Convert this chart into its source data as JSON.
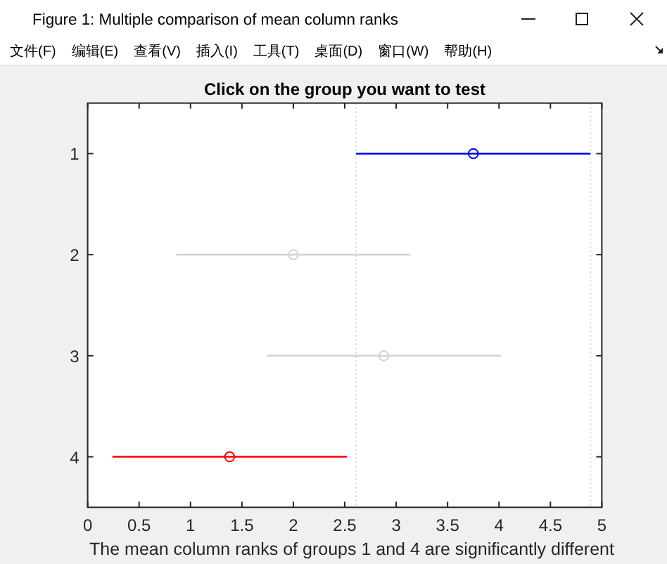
{
  "chart_data": {
    "type": "scatter",
    "title": "Click on the group you want to test",
    "xlabel": "The mean column ranks of groups 1 and 4 are significantly different",
    "x": [
      3.75,
      2.0,
      2.88,
      1.38
    ],
    "values": [
      1,
      2,
      3,
      4
    ],
    "xerrors": [
      1.14,
      1.14,
      1.14,
      1.14
    ],
    "colors": [
      "#0000ff",
      "#d4d4d4",
      "#d4d4d4",
      "#ff0000"
    ],
    "marker": "circle",
    "xlim": [
      0,
      5
    ],
    "xticks": [
      0,
      0.5,
      1,
      1.5,
      2,
      2.5,
      3,
      3.5,
      4,
      4.5,
      5
    ],
    "ylim": [
      4.5,
      0.5
    ],
    "yticks": [
      1,
      2,
      3,
      4
    ],
    "ref_lines": [
      {
        "axis": "x",
        "value": 2.61,
        "color": "#d6d6d6",
        "line_style": "dotted"
      },
      {
        "axis": "x",
        "value": 4.89,
        "color": "#d6d6d6",
        "line_style": "dotted"
      }
    ],
    "annotations": [
      "Figure 1: Multiple comparison of mean column ranks",
      "文件(F)",
      "编辑(E)",
      "查看(V)",
      "插入(I)",
      "工具(T)",
      "桌面(D)",
      "窗口(W)",
      "帮助(H)"
    ]
  }
}
